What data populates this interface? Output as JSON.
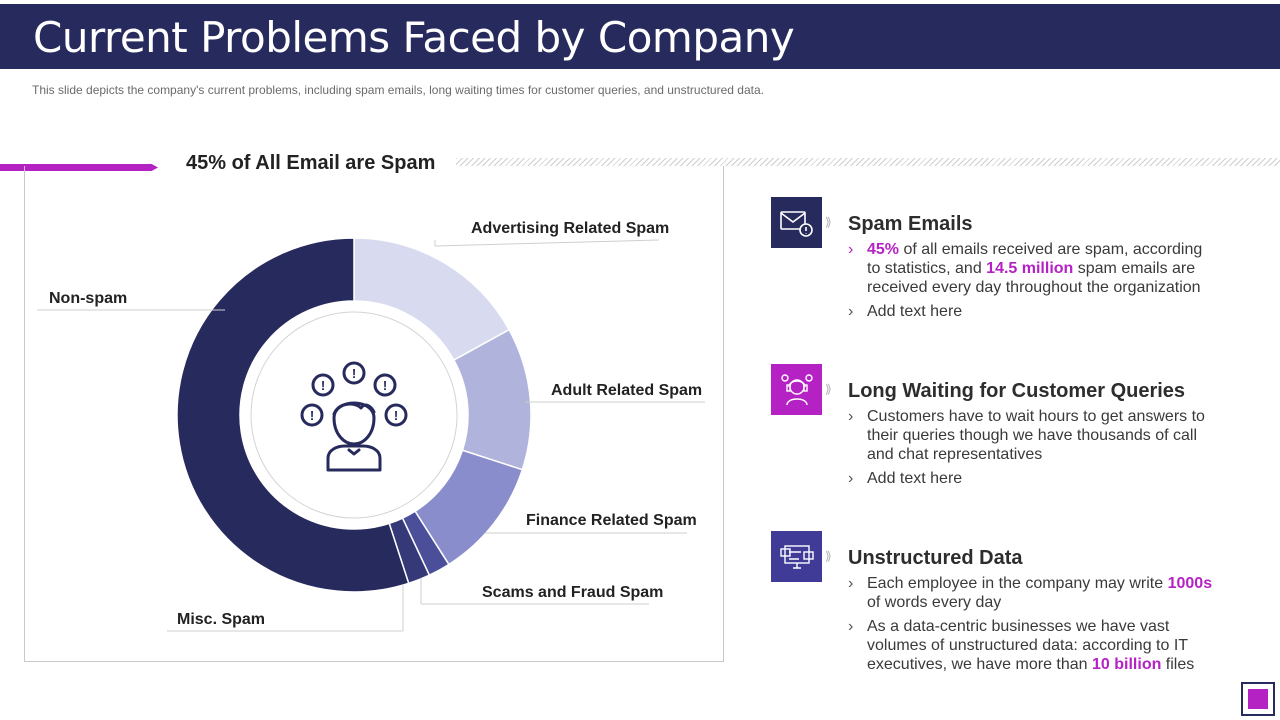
{
  "header": {
    "title": "Current Problems Faced by Company",
    "subtitle": "This slide depicts the company's current problems, including spam emails, long waiting times for customer queries, and unstructured data."
  },
  "colors": {
    "primary": "#272a5c",
    "accent": "#b522c4",
    "icon_blue": "#3f3b96"
  },
  "chart_data": {
    "type": "pie",
    "style": "donut",
    "title": "45% of All Email are Spam",
    "categories": [
      "Advertising Related Spam",
      "Adult Related Spam",
      "Finance Related Spam",
      "Scams and Fraud Spam",
      "Misc. Spam",
      "Non-spam"
    ],
    "values": [
      17,
      13,
      11,
      2,
      2,
      55
    ],
    "colors": [
      "#d8daef",
      "#b0b3db",
      "#8a8dcc",
      "#4b4f9a",
      "#353978",
      "#272a5c"
    ],
    "center_icon": "confused-person-icon"
  },
  "items": [
    {
      "title": "Spam Emails",
      "icon": "email-alert-icon",
      "icon_color": "#272a5c",
      "bullets": [
        {
          "parts": [
            {
              "t": "45%",
              "h": true
            },
            {
              "t": " of all emails received are spam, according to statistics, and "
            },
            {
              "t": "14.5 million",
              "h": true
            },
            {
              "t": " spam emails are received every day throughout  the organization"
            }
          ]
        },
        {
          "parts": [
            {
              "t": "Add text here"
            }
          ]
        }
      ]
    },
    {
      "title": "Long Waiting for Customer Queries",
      "icon": "customer-support-icon",
      "icon_color": "#b522c4",
      "bullets": [
        {
          "parts": [
            {
              "t": "Customers have to wait hours to get answers to their queries though we have thousands of call and chat representatives"
            }
          ]
        },
        {
          "parts": [
            {
              "t": "Add text here"
            }
          ]
        }
      ]
    },
    {
      "title": "Unstructured Data",
      "icon": "data-monitor-icon",
      "icon_color": "#3f3b96",
      "bullets": [
        {
          "parts": [
            {
              "t": "Each employee in the company may write "
            },
            {
              "t": "1000s",
              "h": true
            },
            {
              "t": " of words every day"
            }
          ]
        },
        {
          "parts": [
            {
              "t": "As a data-centric businesses we have vast volumes of unstructured  data: according to IT executives,  we have more than "
            },
            {
              "t": "10 billion",
              "h": true
            },
            {
              "t": " files"
            }
          ]
        }
      ]
    }
  ]
}
